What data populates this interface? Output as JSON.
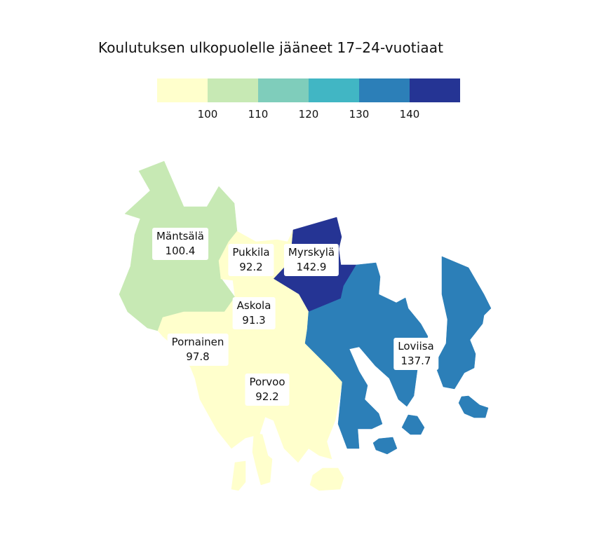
{
  "title": "Koulutuksen ulkopuolelle jääneet 17–24-vuotiaat",
  "legend": {
    "colors": [
      "#ffffcc",
      "#c7e9b4",
      "#7fcdbb",
      "#41b6c4",
      "#2c7fb8",
      "#253494"
    ],
    "ticks": [
      "100",
      "110",
      "120",
      "130",
      "140"
    ]
  },
  "regions": [
    {
      "id": "mantsala",
      "name": "Mäntsälä",
      "value": "100.4",
      "color": "#c7e9b4"
    },
    {
      "id": "pukkila",
      "name": "Pukkila",
      "value": "92.2",
      "color": "#ffffcc"
    },
    {
      "id": "myrskyla",
      "name": "Myrskylä",
      "value": "142.9",
      "color": "#253494"
    },
    {
      "id": "askola",
      "name": "Askola",
      "value": "91.3",
      "color": "#ffffcc"
    },
    {
      "id": "pornainen",
      "name": "Pornainen",
      "value": "97.8",
      "color": "#ffffcc"
    },
    {
      "id": "porvoo",
      "name": "Porvoo",
      "value": "92.2",
      "color": "#ffffcc"
    },
    {
      "id": "loviisa",
      "name": "Loviisa",
      "value": "137.7",
      "color": "#2c7fb8"
    }
  ]
}
